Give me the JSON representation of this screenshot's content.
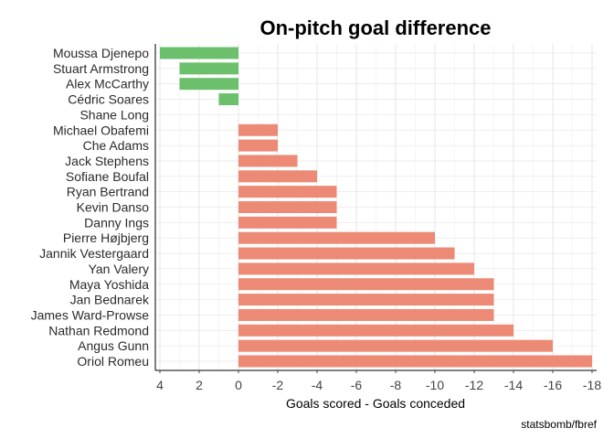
{
  "chart_data": {
    "type": "bar",
    "orientation": "horizontal",
    "title": "On-pitch goal difference",
    "xlabel": "Goals scored - Goals conceded",
    "ylabel": "",
    "caption": "statsbomb/fbref",
    "x_reversed": true,
    "xlim": [
      4,
      -18
    ],
    "xticks": [
      "4",
      "2",
      "0",
      "-2",
      "-4",
      "-6",
      "-8",
      "-10",
      "-12",
      "-14",
      "-16",
      "-18"
    ],
    "grid": true,
    "positive_color": "#6cc06c",
    "negative_color": "#ec8a75",
    "categories": [
      "Moussa Djenepo",
      "Stuart Armstrong",
      "Alex McCarthy",
      "Cédric Soares",
      "Shane Long",
      "Michael Obafemi",
      "Che Adams",
      "Jack Stephens",
      "Sofiane Boufal",
      "Ryan Bertrand",
      "Kevin Danso",
      "Danny Ings",
      "Pierre Højbjerg",
      "Jannik Vestergaard",
      "Yan Valery",
      "Maya Yoshida",
      "Jan Bednarek",
      "James Ward-Prowse",
      "Nathan Redmond",
      "Angus Gunn",
      "Oriol Romeu"
    ],
    "values": [
      4,
      3,
      3,
      1,
      0,
      -2,
      -2,
      -3,
      -4,
      -5,
      -5,
      -5,
      -10,
      -11,
      -12,
      -13,
      -13,
      -13,
      -14,
      -16,
      -18
    ]
  }
}
